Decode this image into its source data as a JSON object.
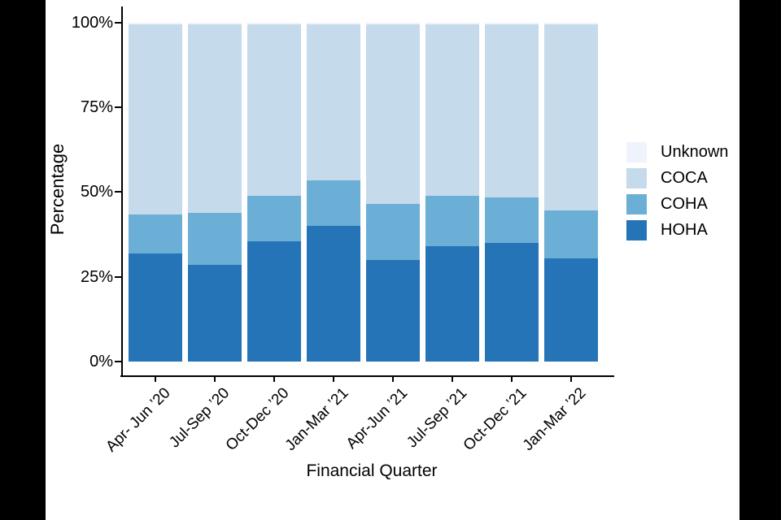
{
  "page": {
    "background": "#ffffff",
    "letterbox_color": "#000000"
  },
  "chart_data": {
    "type": "bar",
    "subtype": "stacked-100-percent",
    "title": "",
    "xlabel": "Financial Quarter",
    "ylabel": "Percentage",
    "ylim": [
      0,
      100
    ],
    "y_ticks": [
      "100%",
      "75%",
      "50%",
      "25%",
      "0%"
    ],
    "grid": false,
    "legend_position": "right",
    "axis_color": "#000000",
    "categories": [
      "Apr- Jun ’20",
      "Jul-Sep ’20",
      "Oct-Dec ’20",
      "Jan-Mar ’21",
      "Apr-Jun ’21",
      "Jul-Sep ’21",
      "Oct-Dec ’21",
      "Jan-Mar ’22"
    ],
    "series": [
      {
        "name": "Unknown",
        "color": "#EFF3FB",
        "values": [
          0.5,
          0.5,
          0.5,
          0.5,
          0.5,
          0.5,
          0.5,
          0.5
        ]
      },
      {
        "name": "COCA",
        "color": "#C5DAEA",
        "values": [
          56,
          55.5,
          50.5,
          46,
          53,
          50.5,
          51,
          55
        ]
      },
      {
        "name": "COHA",
        "color": "#6BAED6",
        "values": [
          11.5,
          15.5,
          13.5,
          13.5,
          16.5,
          15,
          13.5,
          14
        ]
      },
      {
        "name": "HOHA",
        "color": "#2474B7",
        "values": [
          32,
          28.5,
          35.5,
          40,
          30,
          34,
          35,
          30.5
        ]
      }
    ]
  }
}
